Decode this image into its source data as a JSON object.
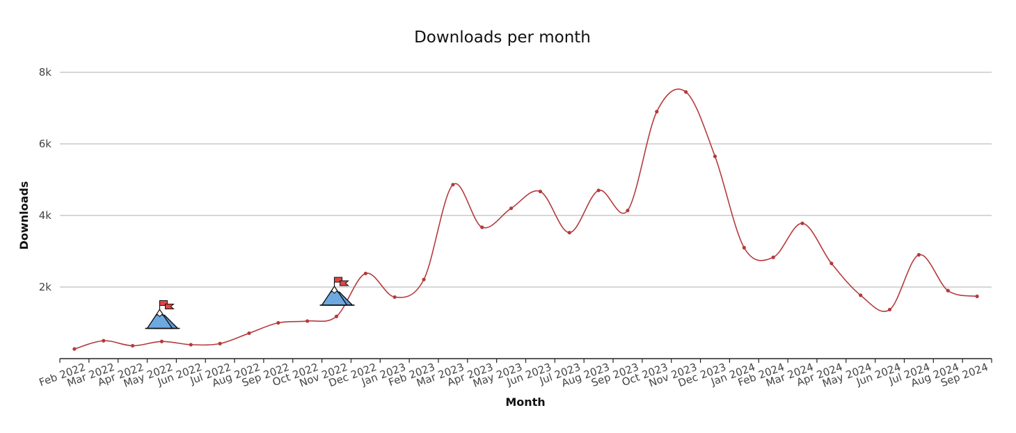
{
  "chart_data": {
    "type": "line",
    "title": "Downloads per month",
    "xlabel": "Month",
    "ylabel": "Downloads",
    "ylim": [
      0,
      8000
    ],
    "yticks": [
      {
        "value": 2000,
        "label": "2k"
      },
      {
        "value": 4000,
        "label": "4k"
      },
      {
        "value": 6000,
        "label": "6k"
      },
      {
        "value": 8000,
        "label": "8k"
      }
    ],
    "grid": true,
    "legend": "none",
    "line_color": "#b5393c",
    "categories": [
      "Feb 2022",
      "Mar 2022",
      "Apr 2022",
      "May 2022",
      "Jun 2022",
      "Jul 2022",
      "Aug 2022",
      "Sep 2022",
      "Oct 2022",
      "Nov 2022",
      "Dec 2022",
      "Jan 2023",
      "Feb 2023",
      "Mar 2023",
      "Apr 2023",
      "May 2023",
      "Jun 2023",
      "Jul 2023",
      "Aug 2023",
      "Sep 2023",
      "Oct 2023",
      "Nov 2023",
      "Dec 2023",
      "Jan 2024",
      "Feb 2024",
      "Mar 2024",
      "Apr 2024",
      "May 2024",
      "Jun 2024",
      "Jul 2024",
      "Aug 2024",
      "Sep 2024"
    ],
    "values": [
      270,
      500,
      360,
      480,
      390,
      420,
      710,
      1000,
      1050,
      1180,
      2380,
      1720,
      2210,
      4860,
      3670,
      4200,
      4670,
      3520,
      4700,
      4140,
      6900,
      7450,
      5650,
      3100,
      2830,
      3780,
      2660,
      1770,
      1370,
      2900,
      1900,
      1740
    ],
    "markers": [
      {
        "month": "May 2022",
        "icon": "mountain-flag-icon",
        "value": 1000
      },
      {
        "month": "Nov 2022",
        "icon": "mountain-flag-icon",
        "value": 1650
      }
    ]
  }
}
